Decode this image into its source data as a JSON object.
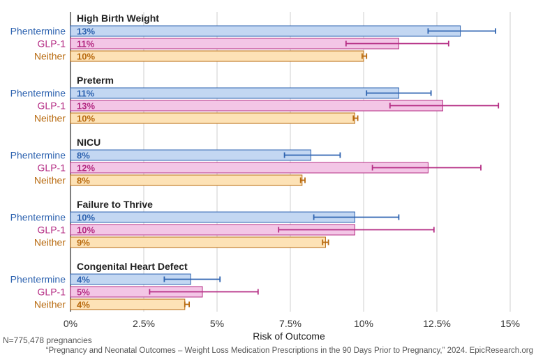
{
  "chart_data": {
    "type": "bar",
    "orientation": "horizontal",
    "xlabel": "Risk of Outcome",
    "xlim": [
      0,
      15
    ],
    "x_ticks": [
      0,
      2.5,
      5,
      7.5,
      10,
      12.5,
      15
    ],
    "x_tick_labels": [
      "0%",
      "2.5%",
      "5%",
      "7.5%",
      "10%",
      "12.5%",
      "15%"
    ],
    "grid": "vertical",
    "legend": "none",
    "series": [
      {
        "name": "Phentermine",
        "color": "#2e63b0",
        "fill": "#c3d7f2"
      },
      {
        "name": "GLP-1",
        "color": "#b52d84",
        "fill": "#f3c6e6"
      },
      {
        "name": "Neither",
        "color": "#b86a0f",
        "fill": "#fde2b6"
      }
    ],
    "groups": [
      {
        "title": "High Birth Weight",
        "bars": [
          {
            "series": "Phentermine",
            "value": 13.3,
            "label": "13%",
            "ci": [
              12.2,
              14.5
            ]
          },
          {
            "series": "GLP-1",
            "value": 11.2,
            "label": "11%",
            "ci": [
              9.4,
              12.9
            ]
          },
          {
            "series": "Neither",
            "value": 10.0,
            "label": "10%",
            "ci": [
              9.95,
              10.1
            ]
          }
        ]
      },
      {
        "title": "Preterm",
        "bars": [
          {
            "series": "Phentermine",
            "value": 11.2,
            "label": "11%",
            "ci": [
              10.1,
              12.3
            ]
          },
          {
            "series": "GLP-1",
            "value": 12.7,
            "label": "13%",
            "ci": [
              10.9,
              14.6
            ]
          },
          {
            "series": "Neither",
            "value": 9.7,
            "label": "10%",
            "ci": [
              9.65,
              9.8
            ]
          }
        ]
      },
      {
        "title": "NICU",
        "bars": [
          {
            "series": "Phentermine",
            "value": 8.2,
            "label": "8%",
            "ci": [
              7.3,
              9.2
            ]
          },
          {
            "series": "GLP-1",
            "value": 12.2,
            "label": "12%",
            "ci": [
              10.3,
              14.0
            ]
          },
          {
            "series": "Neither",
            "value": 7.9,
            "label": "8%",
            "ci": [
              7.85,
              8.0
            ]
          }
        ]
      },
      {
        "title": "Failure to Thrive",
        "bars": [
          {
            "series": "Phentermine",
            "value": 9.7,
            "label": "10%",
            "ci": [
              8.3,
              11.2
            ]
          },
          {
            "series": "GLP-1",
            "value": 9.7,
            "label": "10%",
            "ci": [
              7.1,
              12.4
            ]
          },
          {
            "series": "Neither",
            "value": 8.7,
            "label": "9%",
            "ci": [
              8.6,
              8.8
            ]
          }
        ]
      },
      {
        "title": "Congenital Heart Defect",
        "bars": [
          {
            "series": "Phentermine",
            "value": 4.1,
            "label": "4%",
            "ci": [
              3.2,
              5.1
            ]
          },
          {
            "series": "GLP-1",
            "value": 4.5,
            "label": "5%",
            "ci": [
              2.7,
              6.4
            ]
          },
          {
            "series": "Neither",
            "value": 3.9,
            "label": "4%",
            "ci": [
              3.9,
              4.05
            ]
          }
        ]
      }
    ]
  },
  "notes": {
    "sample": "N=775,478 pregnancies",
    "source": "“Pregnancy and Neonatal Outcomes – Weight Loss Medication Prescriptions in the 90 Days Prior to Pregnancy,” 2024. EpicResearch.org"
  }
}
